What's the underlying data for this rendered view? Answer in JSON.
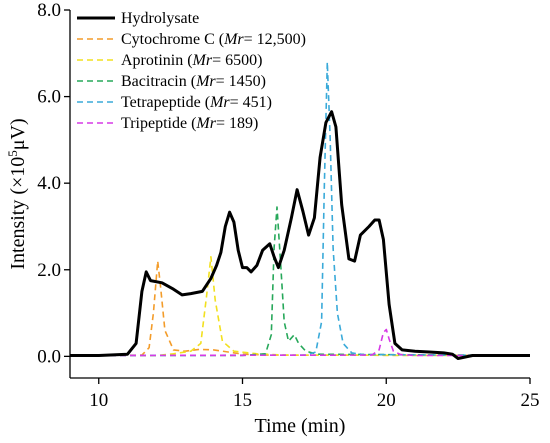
{
  "chart_data": {
    "type": "line",
    "xlabel": "Time (min)",
    "ylabel": "Intensity (×10⁵μV)",
    "ylabel_parts": {
      "pre": "Intensity (×10",
      "sup": "5",
      "post": "μV)"
    },
    "xlim": [
      9,
      25
    ],
    "ylim": [
      -0.5,
      8.0
    ],
    "x_ticks": [
      10,
      15,
      20,
      25
    ],
    "y_ticks": [
      0.0,
      2.0,
      4.0,
      6.0,
      8.0
    ],
    "x_tick_labels": [
      "10",
      "15",
      "20",
      "25"
    ],
    "y_tick_labels": [
      "0.0",
      "2.0",
      "4.0",
      "6.0",
      "8.0"
    ],
    "grid": false,
    "legend_position": "top-left",
    "series": [
      {
        "name": "Hydrolysate",
        "legend_parts": {
          "pre": "Hydrolysate",
          "it": "",
          "post": ""
        },
        "color": "#000000",
        "dashed": false,
        "points": [
          [
            9,
            0.02
          ],
          [
            10,
            0.02
          ],
          [
            11,
            0.05
          ],
          [
            11.3,
            0.3
          ],
          [
            11.5,
            1.5
          ],
          [
            11.65,
            1.95
          ],
          [
            11.8,
            1.75
          ],
          [
            12.2,
            1.7
          ],
          [
            12.6,
            1.55
          ],
          [
            12.9,
            1.42
          ],
          [
            13.2,
            1.45
          ],
          [
            13.6,
            1.5
          ],
          [
            13.9,
            1.8
          ],
          [
            14.1,
            2.1
          ],
          [
            14.25,
            2.4
          ],
          [
            14.4,
            3.0
          ],
          [
            14.55,
            3.33
          ],
          [
            14.7,
            3.1
          ],
          [
            14.85,
            2.45
          ],
          [
            15.0,
            2.05
          ],
          [
            15.15,
            2.05
          ],
          [
            15.3,
            1.95
          ],
          [
            15.5,
            2.1
          ],
          [
            15.7,
            2.45
          ],
          [
            15.95,
            2.6
          ],
          [
            16.1,
            2.3
          ],
          [
            16.25,
            2.05
          ],
          [
            16.45,
            2.45
          ],
          [
            16.7,
            3.2
          ],
          [
            16.9,
            3.85
          ],
          [
            17.1,
            3.35
          ],
          [
            17.3,
            2.8
          ],
          [
            17.5,
            3.2
          ],
          [
            17.7,
            4.6
          ],
          [
            17.9,
            5.4
          ],
          [
            18.1,
            5.65
          ],
          [
            18.25,
            5.3
          ],
          [
            18.45,
            3.5
          ],
          [
            18.7,
            2.25
          ],
          [
            18.9,
            2.2
          ],
          [
            19.1,
            2.8
          ],
          [
            19.4,
            3.0
          ],
          [
            19.6,
            3.15
          ],
          [
            19.75,
            3.15
          ],
          [
            19.9,
            2.7
          ],
          [
            20.1,
            1.2
          ],
          [
            20.3,
            0.3
          ],
          [
            20.55,
            0.15
          ],
          [
            21,
            0.12
          ],
          [
            21.5,
            0.1
          ],
          [
            22,
            0.08
          ],
          [
            22.3,
            0.05
          ],
          [
            22.5,
            -0.05
          ],
          [
            23,
            0.02
          ],
          [
            25,
            0.02
          ]
        ]
      },
      {
        "name": "Cytochrome C (Mr= 12,500)",
        "legend_parts": {
          "pre": "Cytochrome C (",
          "it": "Mr",
          "post": "= 12,500)"
        },
        "color": "#F39C2A",
        "dashed": true,
        "points": [
          [
            9,
            0.02
          ],
          [
            11.5,
            0.03
          ],
          [
            11.75,
            0.2
          ],
          [
            11.9,
            1.0
          ],
          [
            12.05,
            2.2
          ],
          [
            12.15,
            1.6
          ],
          [
            12.3,
            0.6
          ],
          [
            12.6,
            0.15
          ],
          [
            13.0,
            0.12
          ],
          [
            13.5,
            0.16
          ],
          [
            14.0,
            0.15
          ],
          [
            14.5,
            0.1
          ],
          [
            15,
            0.05
          ],
          [
            16,
            0.03
          ],
          [
            25,
            0.02
          ]
        ]
      },
      {
        "name": "Aprotinin (Mr= 6500)",
        "legend_parts": {
          "pre": "Aprotinin (",
          "it": "Mr",
          "post": "= 6500)"
        },
        "color": "#F2E01E",
        "dashed": true,
        "points": [
          [
            9,
            0.02
          ],
          [
            12,
            0.02
          ],
          [
            12.6,
            0.06
          ],
          [
            13.2,
            0.12
          ],
          [
            13.55,
            0.3
          ],
          [
            13.75,
            1.4
          ],
          [
            13.9,
            2.3
          ],
          [
            14.05,
            1.3
          ],
          [
            14.3,
            0.35
          ],
          [
            14.7,
            0.12
          ],
          [
            15.5,
            0.06
          ],
          [
            16.5,
            0.03
          ],
          [
            25,
            0.02
          ]
        ]
      },
      {
        "name": "Bacitracin (Mr= 1450)",
        "legend_parts": {
          "pre": "Bacitracin (",
          "it": "Mr",
          "post": "= 1450)"
        },
        "color": "#27A85A",
        "dashed": true,
        "points": [
          [
            9,
            0.02
          ],
          [
            15,
            0.02
          ],
          [
            15.8,
            0.06
          ],
          [
            16.0,
            0.5
          ],
          [
            16.1,
            2.5
          ],
          [
            16.2,
            3.45
          ],
          [
            16.32,
            2.2
          ],
          [
            16.45,
            0.8
          ],
          [
            16.6,
            0.35
          ],
          [
            16.8,
            0.5
          ],
          [
            16.95,
            0.3
          ],
          [
            17.2,
            0.12
          ],
          [
            17.6,
            0.05
          ],
          [
            25,
            0.02
          ]
        ]
      },
      {
        "name": "Tetrapeptide (Mr= 451)",
        "legend_parts": {
          "pre": "Tetrapeptide (",
          "it": "Mr",
          "post": "= 451)"
        },
        "color": "#3AAAD9",
        "dashed": true,
        "points": [
          [
            9,
            0.02
          ],
          [
            17.2,
            0.03
          ],
          [
            17.55,
            0.1
          ],
          [
            17.75,
            0.8
          ],
          [
            17.85,
            4.0
          ],
          [
            17.95,
            6.8
          ],
          [
            18.05,
            5.0
          ],
          [
            18.15,
            2.5
          ],
          [
            18.3,
            1.0
          ],
          [
            18.5,
            0.3
          ],
          [
            18.8,
            0.08
          ],
          [
            19.2,
            0.04
          ],
          [
            25,
            0.02
          ]
        ]
      },
      {
        "name": "Tripeptide (Mr= 189)",
        "legend_parts": {
          "pre": "Tripeptide (",
          "it": "Mr",
          "post": "= 189)"
        },
        "color": "#D63AE6",
        "dashed": true,
        "points": [
          [
            9,
            0.02
          ],
          [
            19.5,
            0.03
          ],
          [
            19.75,
            0.15
          ],
          [
            19.9,
            0.55
          ],
          [
            20.0,
            0.62
          ],
          [
            20.1,
            0.4
          ],
          [
            20.25,
            0.12
          ],
          [
            20.5,
            0.04
          ],
          [
            21,
            0.02
          ],
          [
            25,
            0.02
          ]
        ]
      }
    ]
  }
}
